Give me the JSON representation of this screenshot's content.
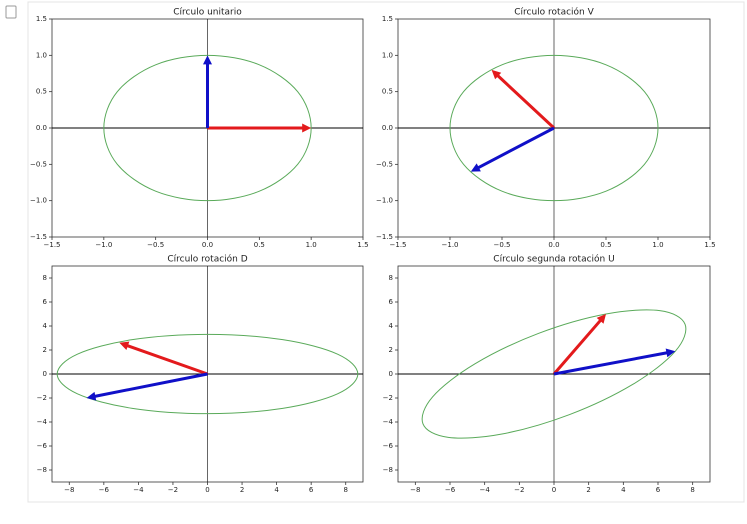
{
  "chart_data": [
    {
      "type": "vector",
      "title": "Círculo unitario",
      "xlim": [
        -1.5,
        1.5
      ],
      "ylim": [
        -1.5,
        1.5
      ],
      "xticks": [
        {
          "value": -1.5,
          "label": "−1.5"
        },
        {
          "value": -1.0,
          "label": "−1.0"
        },
        {
          "value": -0.5,
          "label": "−0.5"
        },
        {
          "value": 0,
          "label": "0.0"
        },
        0.5,
        {
          "value": 1,
          "label": "1.0"
        },
        1.5
      ],
      "yticks": [
        {
          "value": -1.5,
          "label": "−1.5"
        },
        {
          "value": -1.0,
          "label": "−1.0"
        },
        {
          "value": -0.5,
          "label": "−0.5"
        },
        {
          "value": 0,
          "label": "0.0"
        },
        0.5,
        {
          "value": 1,
          "label": "1.0"
        },
        1.5
      ],
      "ellipse": {
        "color": "#5aaa5a",
        "x": [
          1,
          0.87,
          0.5,
          0,
          -0.5,
          -0.87,
          -1,
          -0.87,
          -0.5,
          0,
          0.5,
          0.87
        ],
        "y": [
          0,
          0.5,
          0.87,
          1,
          0.87,
          0.5,
          0,
          -0.5,
          -0.87,
          -1,
          -0.87,
          -0.5
        ]
      },
      "vectors": [
        {
          "color": "#e31a1c",
          "x": 1,
          "y": 0
        },
        {
          "color": "#1010c8",
          "x": 0,
          "y": 1
        }
      ]
    },
    {
      "type": "vector",
      "title": "Círculo rotación V",
      "xlim": [
        -1.5,
        1.5
      ],
      "ylim": [
        -1.5,
        1.5
      ],
      "xticks": [
        {
          "value": -1.5,
          "label": "−1.5"
        },
        {
          "value": -1.0,
          "label": "−1.0"
        },
        {
          "value": -0.5,
          "label": "−0.5"
        },
        {
          "value": 0,
          "label": "0.0"
        },
        0.5,
        {
          "value": 1,
          "label": "1.0"
        },
        1.5
      ],
      "yticks": [
        {
          "value": -1.5,
          "label": "−1.5"
        },
        {
          "value": -1.0,
          "label": "−1.0"
        },
        {
          "value": -0.5,
          "label": "−0.5"
        },
        {
          "value": 0,
          "label": "0.0"
        },
        0.5,
        {
          "value": 1,
          "label": "1.0"
        },
        1.5
      ],
      "ellipse": {
        "color": "#5aaa5a",
        "x": [
          1,
          0.87,
          0.5,
          0,
          -0.5,
          -0.87,
          -1,
          -0.87,
          -0.5,
          0,
          0.5,
          0.87
        ],
        "y": [
          0,
          0.5,
          0.87,
          1,
          0.87,
          0.5,
          0,
          -0.5,
          -0.87,
          -1,
          -0.87,
          -0.5
        ]
      },
      "vectors": [
        {
          "color": "#e31a1c",
          "x": -0.6,
          "y": 0.8
        },
        {
          "color": "#1010c8",
          "x": -0.8,
          "y": -0.6
        }
      ]
    },
    {
      "type": "vector",
      "title": "Círculo rotación D",
      "xlim": [
        -9,
        9
      ],
      "ylim": [
        -9,
        9
      ],
      "xticks": [
        {
          "value": -8,
          "label": "−8"
        },
        {
          "value": -6,
          "label": "−6"
        },
        {
          "value": -4,
          "label": "−4"
        },
        {
          "value": -2,
          "label": "−2"
        },
        0,
        2,
        4,
        6,
        8
      ],
      "yticks": [
        {
          "value": -8,
          "label": "−8"
        },
        {
          "value": -6,
          "label": "−6"
        },
        {
          "value": -4,
          "label": "−4"
        },
        {
          "value": -2,
          "label": "−2"
        },
        0,
        2,
        4,
        6,
        8
      ],
      "ellipse": {
        "color": "#5aaa5a",
        "x": [
          8.7,
          7.53,
          4.35,
          0,
          -4.35,
          -7.53,
          -8.7,
          -7.53,
          -4.35,
          0,
          4.35,
          7.53
        ],
        "y": [
          0,
          1.65,
          2.86,
          3.3,
          2.86,
          1.65,
          0,
          -1.65,
          -2.86,
          -3.3,
          -2.86,
          -1.65
        ]
      },
      "vectors": [
        {
          "color": "#e31a1c",
          "x": -5.1,
          "y": 2.6
        },
        {
          "color": "#1010c8",
          "x": -7.0,
          "y": -2.0
        }
      ]
    },
    {
      "type": "vector",
      "title": "Círculo segunda rotación U",
      "xlim": [
        -9,
        9
      ],
      "ylim": [
        -9,
        9
      ],
      "xticks": [
        {
          "value": -8,
          "label": "−8"
        },
        {
          "value": -6,
          "label": "−6"
        },
        {
          "value": -4,
          "label": "−4"
        },
        {
          "value": -2,
          "label": "−2"
        },
        0,
        2,
        4,
        6,
        8
      ],
      "yticks": [
        {
          "value": -8,
          "label": "−8"
        },
        {
          "value": -6,
          "label": "−6"
        },
        {
          "value": -4,
          "label": "−4"
        },
        {
          "value": -2,
          "label": "−2"
        },
        0,
        2,
        4,
        6,
        8
      ],
      "ellipse": {
        "color": "#5aaa5a",
        "x": [
          7,
          7.56,
          6.1,
          3,
          -0.9,
          -4.56,
          -7,
          -7.56,
          -6.1,
          -3,
          0.9,
          4.56
        ],
        "y": [
          1.9,
          4.15,
          5.28,
          5,
          3.38,
          0.85,
          -1.9,
          -4.15,
          -5.28,
          -5,
          -3.38,
          -0.85
        ]
      },
      "vectors": [
        {
          "color": "#e31a1c",
          "x": 3.0,
          "y": 5.0
        },
        {
          "color": "#1010c8",
          "x": 7.0,
          "y": 1.9
        }
      ]
    }
  ]
}
